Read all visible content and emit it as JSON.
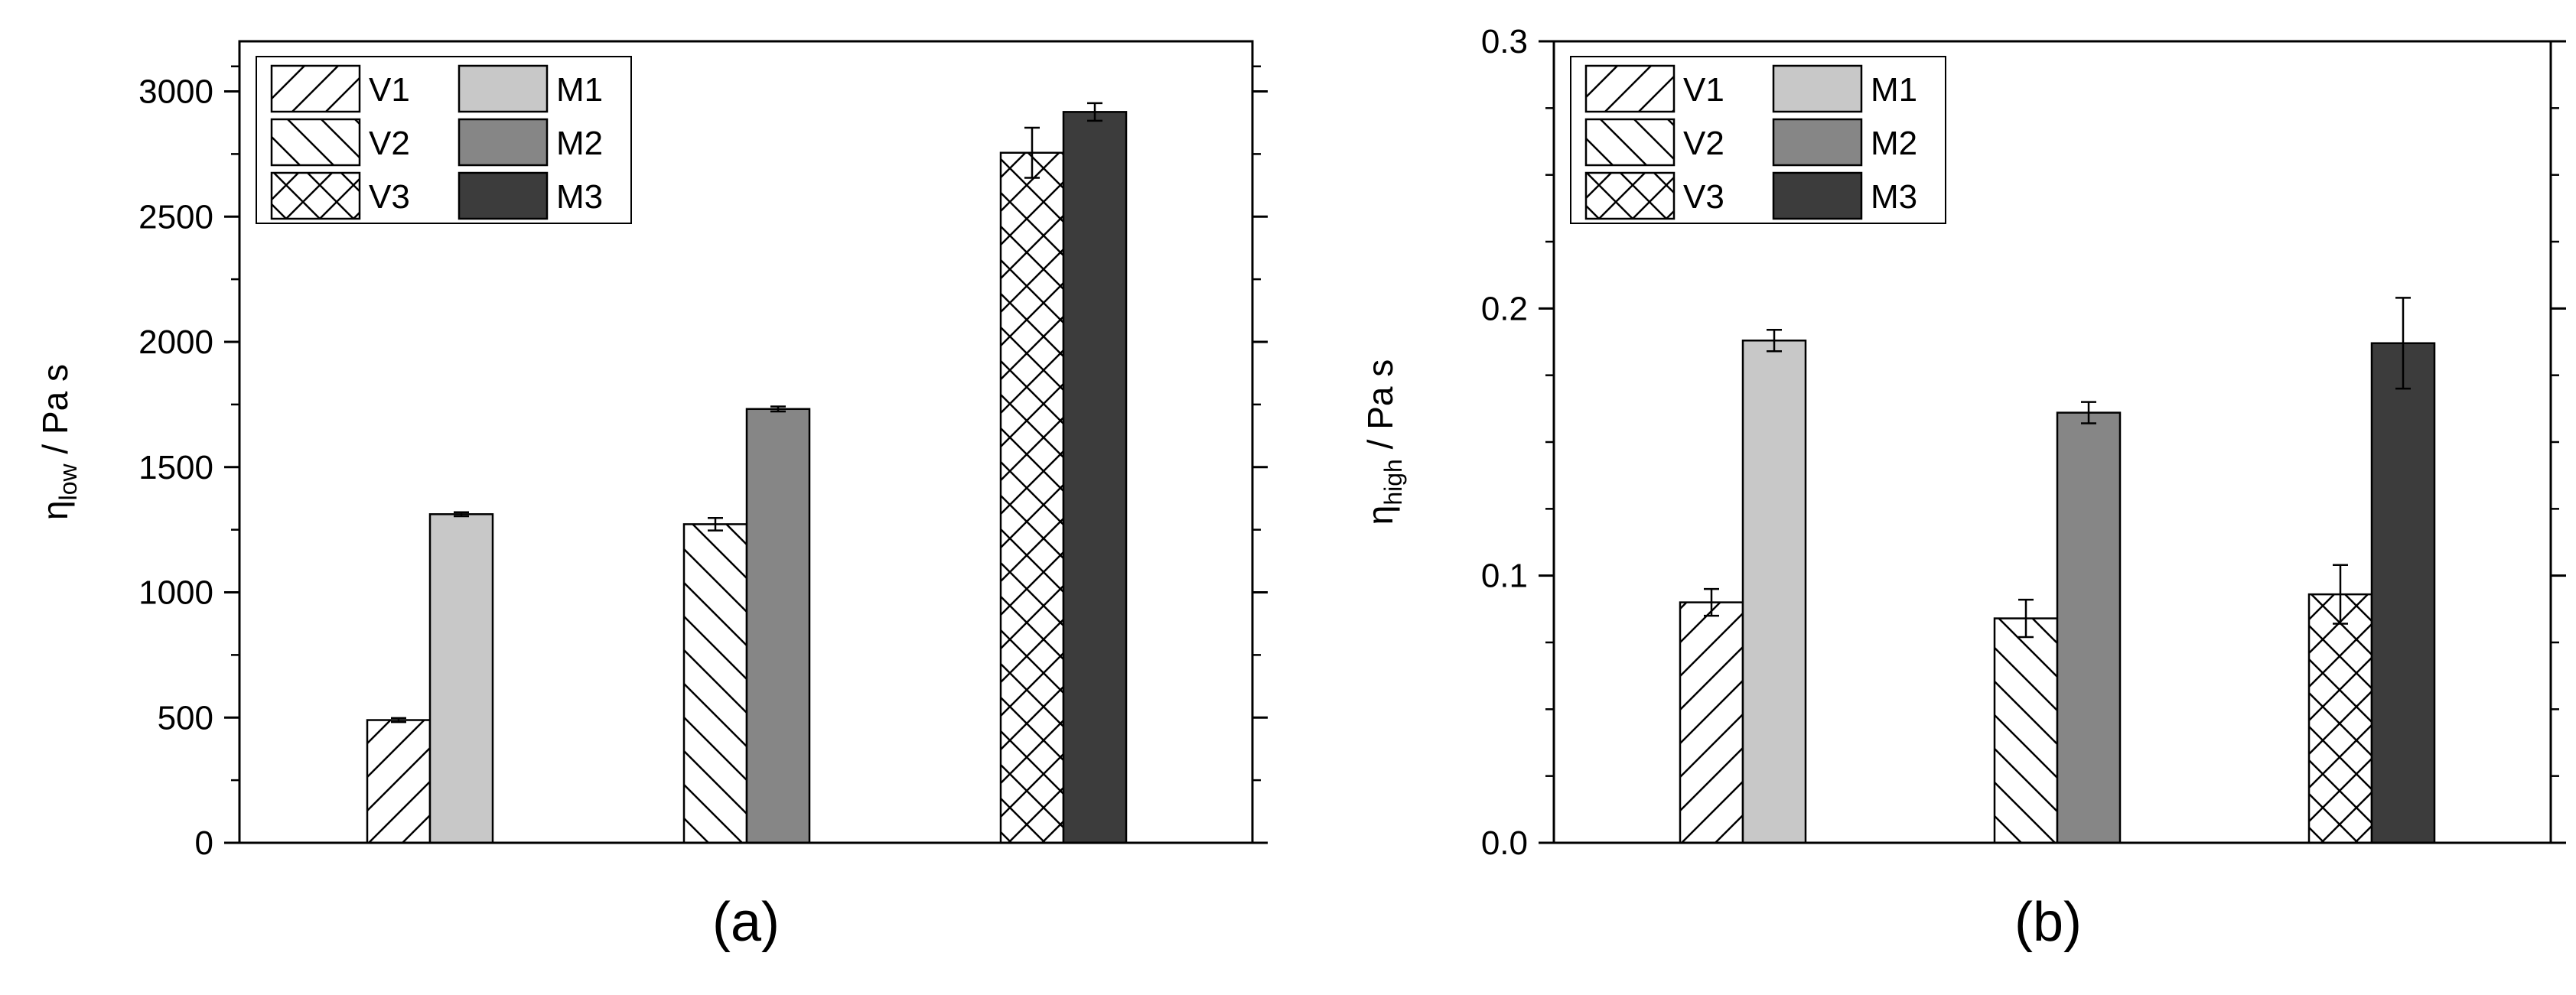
{
  "chart_data": [
    {
      "type": "bar",
      "panel_label": "(a)",
      "ylabel_symbol": "η",
      "ylabel_subscript": "low",
      "ylabel_unit": " / Pa s",
      "ylim": [
        0,
        3200
      ],
      "yticks": [
        0,
        500,
        1000,
        1500,
        2000,
        2500,
        3000
      ],
      "ytick_labels": [
        "0",
        "500",
        "1000",
        "1500",
        "2000",
        "2500",
        "3000"
      ],
      "legend_position": "top-left",
      "groups": [
        {
          "bars": [
            {
              "name": "V1",
              "value": 490,
              "error": 8
            },
            {
              "name": "M1",
              "value": 1312,
              "error": 8
            }
          ]
        },
        {
          "bars": [
            {
              "name": "V2",
              "value": 1272,
              "error": 25
            },
            {
              "name": "M2",
              "value": 1732,
              "error": 10
            }
          ]
        },
        {
          "bars": [
            {
              "name": "V3",
              "value": 2755,
              "error": 100
            },
            {
              "name": "M3",
              "value": 2918,
              "error": 35
            }
          ]
        }
      ]
    },
    {
      "type": "bar",
      "panel_label": "(b)",
      "ylabel_symbol": "η",
      "ylabel_subscript": "high",
      "ylabel_unit": " / Pa s",
      "ylim": [
        0,
        0.3
      ],
      "yticks": [
        0,
        0.1,
        0.2,
        0.3
      ],
      "ytick_labels": [
        "0.0",
        "0.1",
        "0.2",
        "0.3"
      ],
      "legend_position": "top-left",
      "groups": [
        {
          "bars": [
            {
              "name": "V1",
              "value": 0.09,
              "error": 0.005
            },
            {
              "name": "M1",
              "value": 0.188,
              "error": 0.004
            }
          ]
        },
        {
          "bars": [
            {
              "name": "V2",
              "value": 0.084,
              "error": 0.007
            },
            {
              "name": "M2",
              "value": 0.161,
              "error": 0.004
            }
          ]
        },
        {
          "bars": [
            {
              "name": "V3",
              "value": 0.093,
              "error": 0.011
            },
            {
              "name": "M3",
              "value": 0.187,
              "error": 0.017
            }
          ]
        }
      ]
    }
  ],
  "legend": [
    {
      "label": "V1",
      "style": "hatch-forward",
      "color": "#ffffff"
    },
    {
      "label": "M1",
      "style": "solid",
      "color": "#c8c8c8"
    },
    {
      "label": "V2",
      "style": "hatch-back",
      "color": "#ffffff"
    },
    {
      "label": "M2",
      "style": "solid",
      "color": "#868686"
    },
    {
      "label": "V3",
      "style": "hatch-cross",
      "color": "#ffffff"
    },
    {
      "label": "M3",
      "style": "solid",
      "color": "#3c3c3c"
    }
  ]
}
